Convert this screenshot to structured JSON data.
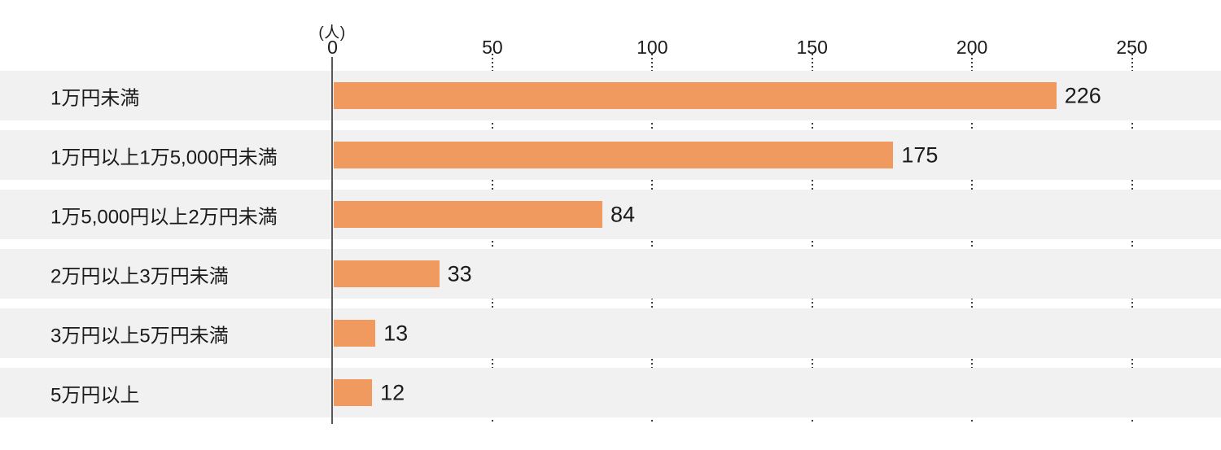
{
  "chart_data": {
    "type": "bar",
    "orientation": "horizontal",
    "x_unit_label": "(人)",
    "categories": [
      "1万円未満",
      "1万円以上1万5,000円未満",
      "1万5,000円以上2万円未満",
      "2万円以上3万円未満",
      "3万円以上5万円未満",
      "5万円以上"
    ],
    "values": [
      226,
      175,
      84,
      33,
      13,
      12
    ],
    "xticks": [
      0,
      50,
      100,
      150,
      200,
      250
    ],
    "xlim": [
      0,
      250
    ],
    "grid": "dotted-vertical-at-ticks",
    "legend": "none",
    "title": "",
    "colors": {
      "bar": "#F09A60",
      "row_band": "#F1F1F1",
      "axis_line": "#58595b",
      "text": "#1b1b1b",
      "grid_dots": "#3d3d3d",
      "background": "#ffffff"
    }
  }
}
